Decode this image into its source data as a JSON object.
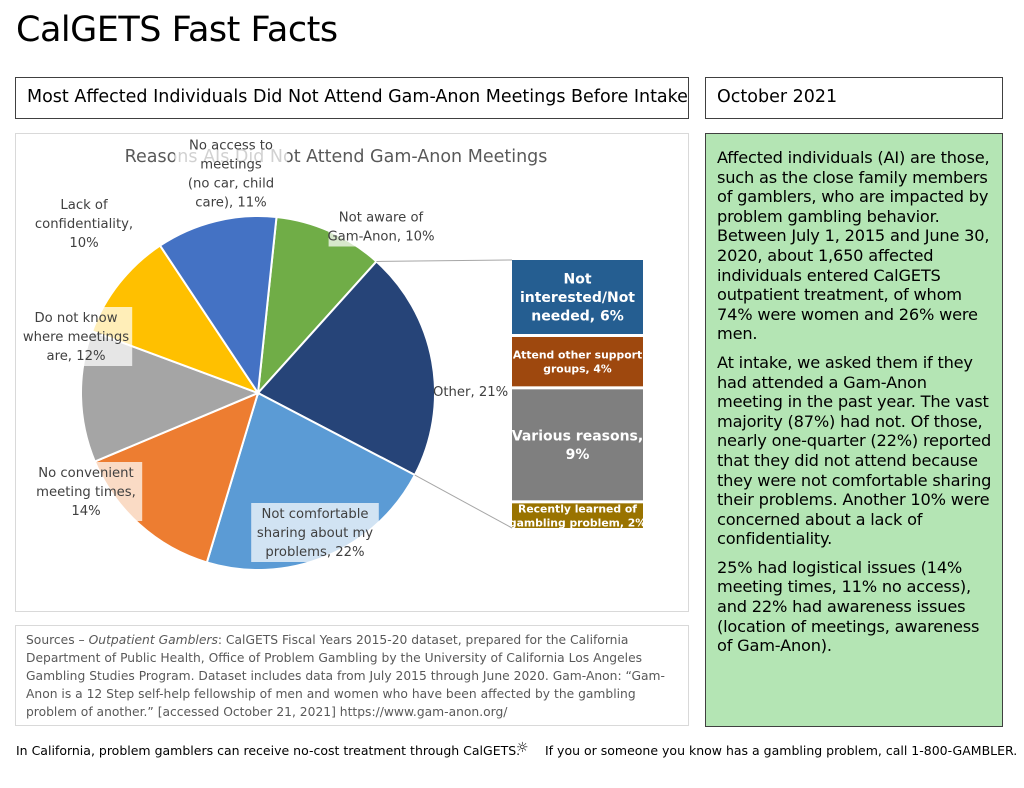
{
  "page": {
    "title": "CalGETS Fast Facts",
    "headline": "Most Affected Individuals Did Not Attend Gam-Anon Meetings Before Intake",
    "date": "October 2021"
  },
  "facts": {
    "p1": "Affected individuals (AI) are those, such as the close family members of gamblers, who are impacted by problem gambling behavior. Between July 1, 2015 and June 30, 2020, about  1,650 affected individuals entered CalGETS outpatient treatment, of whom 74% were women and 26% were men.",
    "p2": "At intake, we asked them if they had attended a Gam-Anon meeting in the past year. The vast majority (87%) had not. Of those, nearly one-quarter (22%) reported that they did not attend because they were not comfortable sharing their problems. Another 10% were concerned about a lack of confidentiality.",
    "p3": "25% had logistical issues (14% meeting times, 11% no access), and 22% had awareness issues (location of meetings, awareness of Gam-Anon)."
  },
  "sources": {
    "prefix": "Sources – ",
    "italic": "Outpatient Gamblers",
    "text": ": CalGETS Fiscal Years 2015-20 dataset, prepared for the California Department of Public Health, Office of Problem Gambling by the University of California Los Angeles Gambling Studies Program. Dataset includes data from July 2015 through June 2020. Gam-Anon: “Gam-Anon is a 12 Step self-help fellowship of men and women who have been affected by the gambling problem of another.” [accessed October 21, 2021]  https://www.gam-anon.org/"
  },
  "footer": {
    "left": "In California, problem gamblers can receive no-cost treatment through CalGETS.",
    "separator": "☼",
    "right": "If you or someone you know has a gambling problem, call 1-800-GAMBLER."
  },
  "chart_data": {
    "type": "pie",
    "title": "Reasons AIs Did Not Attend Gam-Anon Meetings",
    "slices": [
      {
        "label_lines": [
          "Not aware of",
          "Gam-Anon, 10%"
        ],
        "value": 10,
        "color": "#70ad47"
      },
      {
        "label_lines": [
          "Other, 21%"
        ],
        "value": 21,
        "color": "#264478"
      },
      {
        "label_lines": [
          "Not comfortable",
          "sharing about my",
          "problems, 22%"
        ],
        "value": 22,
        "color": "#5b9bd5"
      },
      {
        "label_lines": [
          "No convenient",
          "meeting times,",
          "14%"
        ],
        "value": 14,
        "color": "#ed7d31"
      },
      {
        "label_lines": [
          "Do not know",
          "where meetings",
          "are, 12%"
        ],
        "value": 12,
        "color": "#a5a5a5"
      },
      {
        "label_lines": [
          "Lack of",
          "confidentiality,",
          "10%"
        ],
        "value": 10,
        "color": "#ffc000"
      },
      {
        "label_lines": [
          "No access to",
          "meetings",
          "(no car, child",
          "care), 11%"
        ],
        "value": 11,
        "color": "#4472c4"
      }
    ],
    "breakdown": {
      "of": "Other, 21%",
      "segments": [
        {
          "label_lines": [
            "Not",
            "interested/Not",
            "needed, 6%"
          ],
          "value": 6,
          "color": "#255e91"
        },
        {
          "label_lines": [
            "Attend other support",
            "groups, 4%"
          ],
          "value": 4,
          "color": "#9e480e"
        },
        {
          "label_lines": [
            "Various reasons,",
            "9%"
          ],
          "value": 9,
          "color": "#7f7f7f"
        },
        {
          "label_lines": [
            "Recently learned of",
            "gambling problem, 2%"
          ],
          "value": 2,
          "color": "#997300"
        }
      ]
    }
  }
}
